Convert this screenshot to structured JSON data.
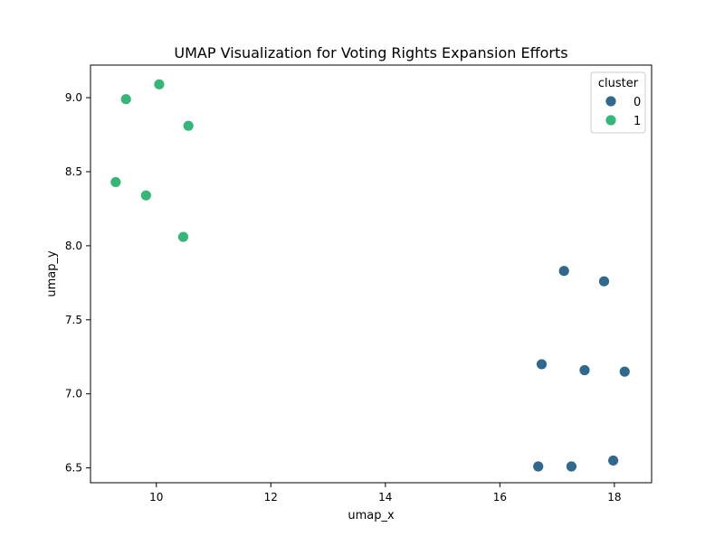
{
  "chart_data": {
    "type": "scatter",
    "title": "UMAP Visualization for Voting Rights Expansion Efforts",
    "xlabel": "umap_x",
    "ylabel": "umap_y",
    "xlim": [
      8.85,
      18.65
    ],
    "ylim": [
      6.4,
      9.22
    ],
    "xticks": [
      10,
      12,
      14,
      16,
      18
    ],
    "xtick_labels": [
      "10",
      "12",
      "14",
      "16",
      "18"
    ],
    "yticks": [
      6.5,
      7.0,
      7.5,
      8.0,
      8.5,
      9.0
    ],
    "ytick_labels": [
      "6.5",
      "7.0",
      "7.5",
      "8.0",
      "8.5",
      "9.0"
    ],
    "grid": false,
    "legend": {
      "title": "cluster",
      "placement": "top-right"
    },
    "series": [
      {
        "name": "0",
        "color": "#31688e",
        "points": [
          [
            17.12,
            7.83
          ],
          [
            17.82,
            7.76
          ],
          [
            16.73,
            7.2
          ],
          [
            17.48,
            7.16
          ],
          [
            18.18,
            7.15
          ],
          [
            16.67,
            6.51
          ],
          [
            17.25,
            6.51
          ],
          [
            17.98,
            6.55
          ]
        ]
      },
      {
        "name": "1",
        "color": "#35b779",
        "points": [
          [
            10.05,
            9.09
          ],
          [
            9.47,
            8.99
          ],
          [
            10.56,
            8.81
          ],
          [
            9.29,
            8.43
          ],
          [
            9.82,
            8.34
          ],
          [
            10.47,
            8.06
          ]
        ]
      }
    ]
  }
}
